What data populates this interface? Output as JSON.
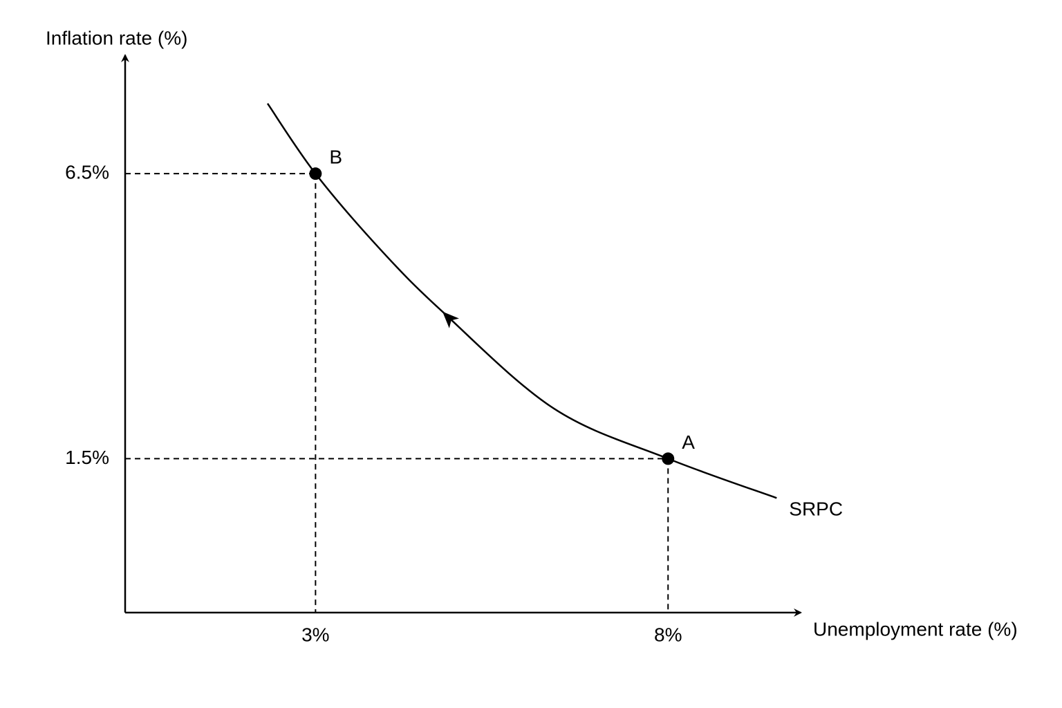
{
  "chart_data": {
    "type": "line",
    "x_label": "Unemployment rate (%)",
    "y_label": "Inflation rate (%)",
    "xlim": [
      0.3,
      9.9
    ],
    "ylim": [
      -1.2,
      8.6
    ],
    "xticks": [
      {
        "value": 3,
        "label": "3%"
      },
      {
        "value": 8,
        "label": "8%"
      }
    ],
    "yticks": [
      {
        "value": 1.5,
        "label": "1.5%"
      },
      {
        "value": 6.5,
        "label": "6.5%"
      }
    ],
    "series": [
      {
        "name": "SRPC",
        "color": "#000000",
        "x": [
          2.32,
          3,
          3.92,
          4.8,
          6.38,
          8,
          9.54
        ],
        "values": [
          7.73,
          6.5,
          5.17,
          4.08,
          2.38,
          1.5,
          0.81
        ]
      }
    ],
    "points": [
      {
        "label": "B",
        "x": 3,
        "y": 6.5
      },
      {
        "label": "A",
        "x": 8,
        "y": 1.5
      }
    ]
  }
}
